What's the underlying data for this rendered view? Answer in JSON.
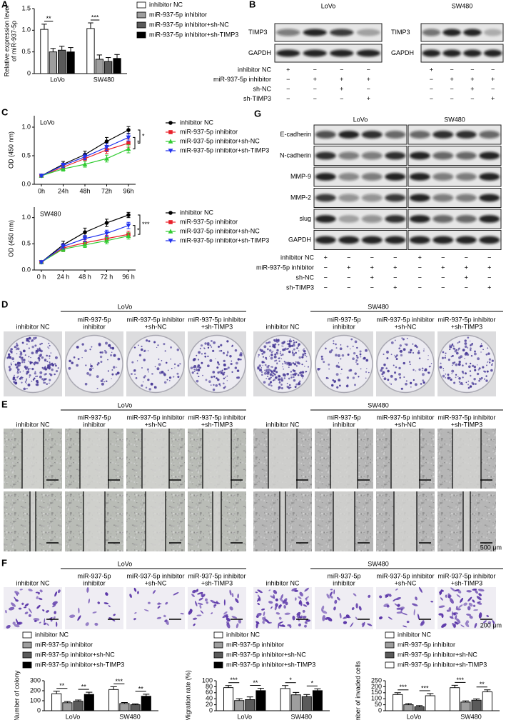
{
  "panel_labels": [
    "A",
    "B",
    "C",
    "D",
    "E",
    "F",
    "G"
  ],
  "chart_data": [
    {
      "type": "bar",
      "ylabel": [
        "Relative expression level",
        "of miR-937-5p"
      ],
      "categories": [
        "LoVo",
        "SW480"
      ],
      "ylim": [
        0,
        1.5
      ],
      "yticks": [
        0,
        0.5,
        {
          "value": 1,
          "label": "1.0"
        },
        1.5
      ],
      "series": [
        {
          "name": "inhibitor NC",
          "color": "#ffffff",
          "values": [
            1.02,
            1.04
          ],
          "errors": [
            0.12,
            0.13
          ]
        },
        {
          "name": "miR-937-5p inhibitor",
          "color": "#9e9e9e",
          "values": [
            0.5,
            0.33
          ],
          "errors": [
            0.08,
            0.1
          ]
        },
        {
          "name": "miR-937-5p inhibitor+sh-NC",
          "color": "#5a5a5a",
          "values": [
            0.54,
            0.28
          ],
          "errors": [
            0.09,
            0.09
          ]
        },
        {
          "name": "miR-937-5p inhibitor+sh-TIMP3",
          "color": "#000000",
          "values": [
            0.5,
            0.35
          ],
          "errors": [
            0.1,
            0.09
          ]
        }
      ],
      "significance": [
        [
          "**"
        ],
        [
          "***"
        ]
      ]
    },
    {
      "type": "line",
      "label": "LoVo",
      "ylabel": "OD (450 nm)",
      "categories": [
        "0h",
        "24h",
        "48h",
        "72h",
        "96h"
      ],
      "ylim": [
        0,
        1.2
      ],
      "yticks": [
        {
          "value": 0,
          "label": "0.0"
        },
        0.5,
        {
          "value": 1,
          "label": "1.0"
        }
      ],
      "series": [
        {
          "name": "inhibitor NC",
          "color": "#000000",
          "marker": "circle",
          "values": [
            0.15,
            0.35,
            0.52,
            0.75,
            0.95
          ],
          "errors": [
            0.02,
            0.05,
            0.06,
            0.07,
            0.06
          ]
        },
        {
          "name": "miR-937-5p inhibitor",
          "color": "#e8202a",
          "marker": "square",
          "values": [
            0.15,
            0.3,
            0.45,
            0.6,
            0.72
          ],
          "errors": [
            0.02,
            0.04,
            0.05,
            0.06,
            0.07
          ]
        },
        {
          "name": "miR-937-5p inhibitor+sh-NC",
          "color": "#33cc33",
          "marker": "triangle-up",
          "values": [
            0.15,
            0.27,
            0.35,
            0.45,
            0.62
          ],
          "errors": [
            0.02,
            0.04,
            0.05,
            0.06,
            0.07
          ]
        },
        {
          "name": "miR-937-5p inhibitor+sh-TIMP3",
          "color": "#2233ee",
          "marker": "triangle-down",
          "values": [
            0.15,
            0.33,
            0.48,
            0.65,
            0.82
          ],
          "errors": [
            0.02,
            0.04,
            0.05,
            0.06,
            0.06
          ]
        }
      ],
      "significance": [
        "*",
        "*"
      ]
    },
    {
      "type": "line",
      "label": "SW480",
      "ylabel": "OD (450 nm)",
      "categories": [
        "0 h",
        "24 h",
        "48 h",
        "72 h",
        "96 h"
      ],
      "ylim": [
        0,
        1.2
      ],
      "yticks": [
        {
          "value": 0,
          "label": "0.0"
        },
        0.5,
        {
          "value": 1,
          "label": "1.0"
        }
      ],
      "series": [
        {
          "name": "inhibitor NC",
          "color": "#000000",
          "marker": "circle",
          "values": [
            0.15,
            0.48,
            0.72,
            0.9,
            1.05
          ],
          "errors": [
            0.02,
            0.07,
            0.08,
            0.07,
            0.05
          ]
        },
        {
          "name": "miR-937-5p inhibitor",
          "color": "#e8202a",
          "marker": "square",
          "values": [
            0.15,
            0.42,
            0.52,
            0.6,
            0.68
          ],
          "errors": [
            0.02,
            0.06,
            0.06,
            0.06,
            0.06
          ]
        },
        {
          "name": "miR-937-5p inhibitor+sh-NC",
          "color": "#33cc33",
          "marker": "triangle-up",
          "values": [
            0.15,
            0.4,
            0.48,
            0.56,
            0.65
          ],
          "errors": [
            0.02,
            0.05,
            0.05,
            0.06,
            0.06
          ]
        },
        {
          "name": "miR-937-5p inhibitor+sh-TIMP3",
          "color": "#2233ee",
          "marker": "triangle-down",
          "values": [
            0.15,
            0.45,
            0.6,
            0.7,
            0.85
          ],
          "errors": [
            0.02,
            0.05,
            0.06,
            0.06,
            0.06
          ]
        }
      ],
      "significance": [
        "***",
        "*"
      ]
    },
    {
      "type": "bar",
      "ylabel": "Number of colony",
      "categories": [
        "LoVo",
        "SW480"
      ],
      "ylim": [
        0,
        300
      ],
      "yticks": [
        0,
        100,
        200,
        300
      ],
      "series": [
        {
          "name": "inhibitor NC",
          "color": "#ffffff",
          "values": [
            170,
            212
          ],
          "errors": [
            25,
            28
          ]
        },
        {
          "name": "miR-937-5p inhibitor",
          "color": "#9e9e9e",
          "values": [
            80,
            72
          ],
          "errors": [
            12,
            10
          ]
        },
        {
          "name": "miR-937-5p inhibitor+sh-NC",
          "color": "#5a5a5a",
          "values": [
            95,
            60
          ],
          "errors": [
            12,
            8
          ]
        },
        {
          "name": "miR-937-5p inhibitor+sh-TIMP3",
          "color": "#000000",
          "values": [
            163,
            145
          ],
          "errors": [
            22,
            20
          ]
        }
      ],
      "significance": [
        [
          "**",
          "**"
        ],
        [
          "***",
          "**"
        ]
      ]
    },
    {
      "type": "bar",
      "ylabel": "Migration rate (%)",
      "categories": [
        "LoVo",
        "SW480"
      ],
      "ylim": [
        0,
        100
      ],
      "yticks": [
        0,
        20,
        40,
        60,
        80,
        100
      ],
      "series": [
        {
          "name": "inhibitor NC",
          "color": "#ffffff",
          "values": [
            77,
            74
          ],
          "errors": [
            7,
            10
          ]
        },
        {
          "name": "miR-937-5p inhibitor",
          "color": "#9e9e9e",
          "values": [
            34,
            53
          ],
          "errors": [
            6,
            8
          ]
        },
        {
          "name": "miR-937-5p inhibitor+sh-NC",
          "color": "#5a5a5a",
          "values": [
            37,
            47
          ],
          "errors": [
            9,
            7
          ]
        },
        {
          "name": "miR-937-5p inhibitor+sh-TIMP3",
          "color": "#000000",
          "values": [
            67,
            67
          ],
          "errors": [
            8,
            6
          ]
        }
      ],
      "significance": [
        [
          "***",
          "**"
        ],
        [
          "*",
          "*"
        ]
      ]
    },
    {
      "type": "bar",
      "ylabel": "Number of invaded cells",
      "categories": [
        "LoVo",
        "SW480"
      ],
      "ylim": [
        0,
        250
      ],
      "yticks": [
        0,
        50,
        100,
        150,
        200,
        250
      ],
      "series": [
        {
          "name": "inhibitor NC",
          "color": "#ffffff",
          "values": [
            135,
            192
          ],
          "errors": [
            15,
            20
          ]
        },
        {
          "name": "miR-937-5p inhibitor",
          "color": "#9e9e9e",
          "values": [
            50,
            72
          ],
          "errors": [
            10,
            10
          ]
        },
        {
          "name": "miR-937-5p inhibitor+sh-NC",
          "color": "#5a5a5a",
          "values": [
            33,
            88
          ],
          "errors": [
            10,
            10
          ]
        },
        {
          "name": "miR-937-5p inhibitor+sh-TIMP3",
          "color": "#ffffff",
          "values": [
            125,
            157
          ],
          "errors": [
            18,
            17
          ]
        }
      ],
      "significance": [
        [
          "***",
          "***"
        ],
        [
          "***",
          "**"
        ]
      ]
    }
  ],
  "western_blots": {
    "B": {
      "cell_lines": [
        "LoVo",
        "SW480"
      ],
      "rows": [
        "TIMP3",
        "GAPDH"
      ],
      "conditions": [
        {
          "name": "inhibitor NC",
          "signs": [
            "+",
            "−",
            "−",
            "−",
            "+",
            "−",
            "−",
            "−"
          ]
        },
        {
          "name": "miR-937-5p inhibitor",
          "signs": [
            "−",
            "+",
            "+",
            "+",
            "−",
            "+",
            "+",
            "+"
          ]
        },
        {
          "name": "sh-NC",
          "signs": [
            "−",
            "−",
            "+",
            "−",
            "−",
            "−",
            "+",
            "−"
          ]
        },
        {
          "name": "sh-TIMP3",
          "signs": [
            "−",
            "−",
            "−",
            "+",
            "−",
            "−",
            "−",
            "+"
          ]
        }
      ]
    },
    "G": {
      "cell_lines": [
        "LoVo",
        "SW480"
      ],
      "rows": [
        "E-cadherin",
        "N-cadherin",
        "MMP-9",
        "MMP-2",
        "slug",
        "GAPDH"
      ],
      "conditions": [
        {
          "name": "inhibitor NC",
          "signs": [
            "+",
            "−",
            "−",
            "−",
            "+",
            "−",
            "−",
            "−"
          ]
        },
        {
          "name": "miR-937-5p inhibitor",
          "signs": [
            "−",
            "+",
            "+",
            "+",
            "−",
            "+",
            "+",
            "+"
          ]
        },
        {
          "name": "sh-NC",
          "signs": [
            "−",
            "−",
            "+",
            "−",
            "−",
            "−",
            "+",
            "−"
          ]
        },
        {
          "name": "sh-TIMP3",
          "signs": [
            "−",
            "−",
            "−",
            "+",
            "−",
            "−",
            "−",
            "+"
          ]
        }
      ]
    }
  },
  "colony_assay": {
    "cell_lines": [
      "LoVo",
      "SW480"
    ],
    "captions": [
      [
        "inhibitor NC"
      ],
      [
        "miR-937-5p",
        "inhibitor"
      ],
      [
        "miR-937-5p inhibitor",
        "+sh-NC"
      ],
      [
        "miR-937-5p inhibitor",
        "+sh-TIMP3"
      ]
    ]
  },
  "wound_assay": {
    "cell_lines": [
      "LoVo",
      "SW480"
    ],
    "captions": [
      [
        "inhibitor NC"
      ],
      [
        "miR-937-5p",
        "inhibitor"
      ],
      [
        "miR-937-5p inhibitor",
        "+sh-NC"
      ],
      [
        "miR-937-5p inhibitor",
        "+sh-TIMP3"
      ]
    ],
    "scale_bar": "500 μm"
  },
  "invasion_assay": {
    "cell_lines": [
      "LoVo",
      "SW480"
    ],
    "captions": [
      [
        "inhibitor NC"
      ],
      [
        "miR-937-5p",
        "inhibitor"
      ],
      [
        "miR-937-5p inhibitor",
        "+sh-NC"
      ],
      [
        "miR-937-5p inhibitor",
        "+sh-TIMP3"
      ]
    ],
    "scale_bar": "200 μm"
  }
}
